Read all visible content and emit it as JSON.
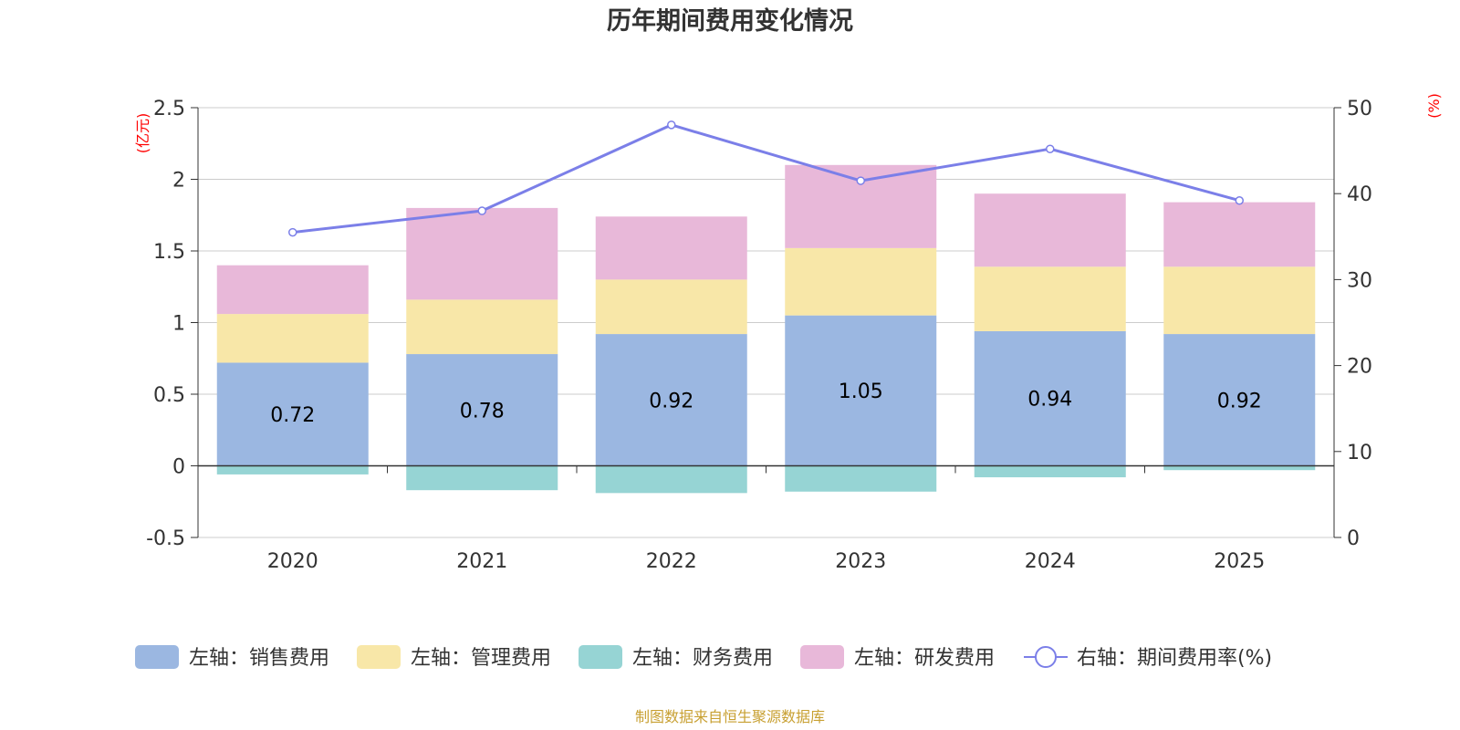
{
  "title": "历年期间费用变化情况",
  "source_note": "制图数据来自恒生聚源数据库",
  "chart_data": {
    "type": "bar",
    "stacked": true,
    "title": "历年期间费用变化情况",
    "categories": [
      "2020",
      "2021",
      "2022",
      "2023",
      "2024",
      "2025"
    ],
    "left_axis": {
      "unit": "(亿元)",
      "ylim": [
        -0.5,
        2.5
      ],
      "ticks": [
        "-0.5",
        "0",
        "0.5",
        "1",
        "1.5",
        "2",
        "2.5"
      ]
    },
    "right_axis": {
      "unit": "(%)",
      "ylim": [
        0,
        50
      ],
      "ticks": [
        "0",
        "10",
        "20",
        "30",
        "40",
        "50"
      ]
    },
    "series": [
      {
        "name": "左轴：销售费用",
        "axis": "left",
        "color": "#9bb7e1",
        "values": [
          0.72,
          0.78,
          0.92,
          1.05,
          0.94,
          0.92
        ],
        "labels": [
          "0.72",
          "0.78",
          "0.92",
          "1.05",
          "0.94",
          "0.92"
        ]
      },
      {
        "name": "左轴：管理费用",
        "axis": "left",
        "color": "#f8e7a8",
        "values": [
          0.34,
          0.38,
          0.38,
          0.47,
          0.45,
          0.47
        ]
      },
      {
        "name": "左轴：财务费用",
        "axis": "left",
        "color": "#96d4d4",
        "values": [
          -0.06,
          -0.17,
          -0.19,
          -0.18,
          -0.08,
          -0.03
        ]
      },
      {
        "name": "左轴：研发费用",
        "axis": "left",
        "color": "#e8b8d9",
        "values": [
          0.34,
          0.64,
          0.44,
          0.58,
          0.51,
          0.45
        ]
      },
      {
        "name": "右轴：期间费用率(%)",
        "axis": "right",
        "type": "line",
        "color": "#7b7fe8",
        "values": [
          35.5,
          38,
          48,
          41.5,
          45.2,
          39.2
        ]
      }
    ]
  }
}
